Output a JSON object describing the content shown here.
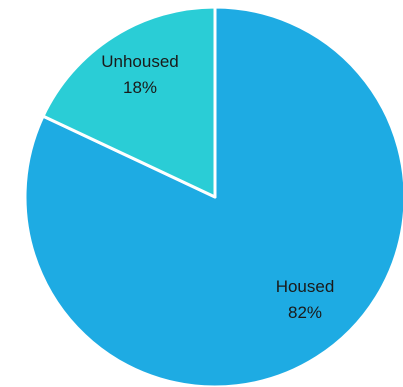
{
  "chart_data": {
    "type": "pie",
    "categories": [
      "Housed",
      "Unhoused"
    ],
    "values": [
      82,
      18
    ],
    "value_labels": [
      "82%",
      "18%"
    ],
    "colors": [
      "#1EABE3",
      "#2ACDD6"
    ],
    "start_angle_deg": 0,
    "direction": "clockwise",
    "slice_border_color": "#ffffff",
    "legend": "none"
  }
}
